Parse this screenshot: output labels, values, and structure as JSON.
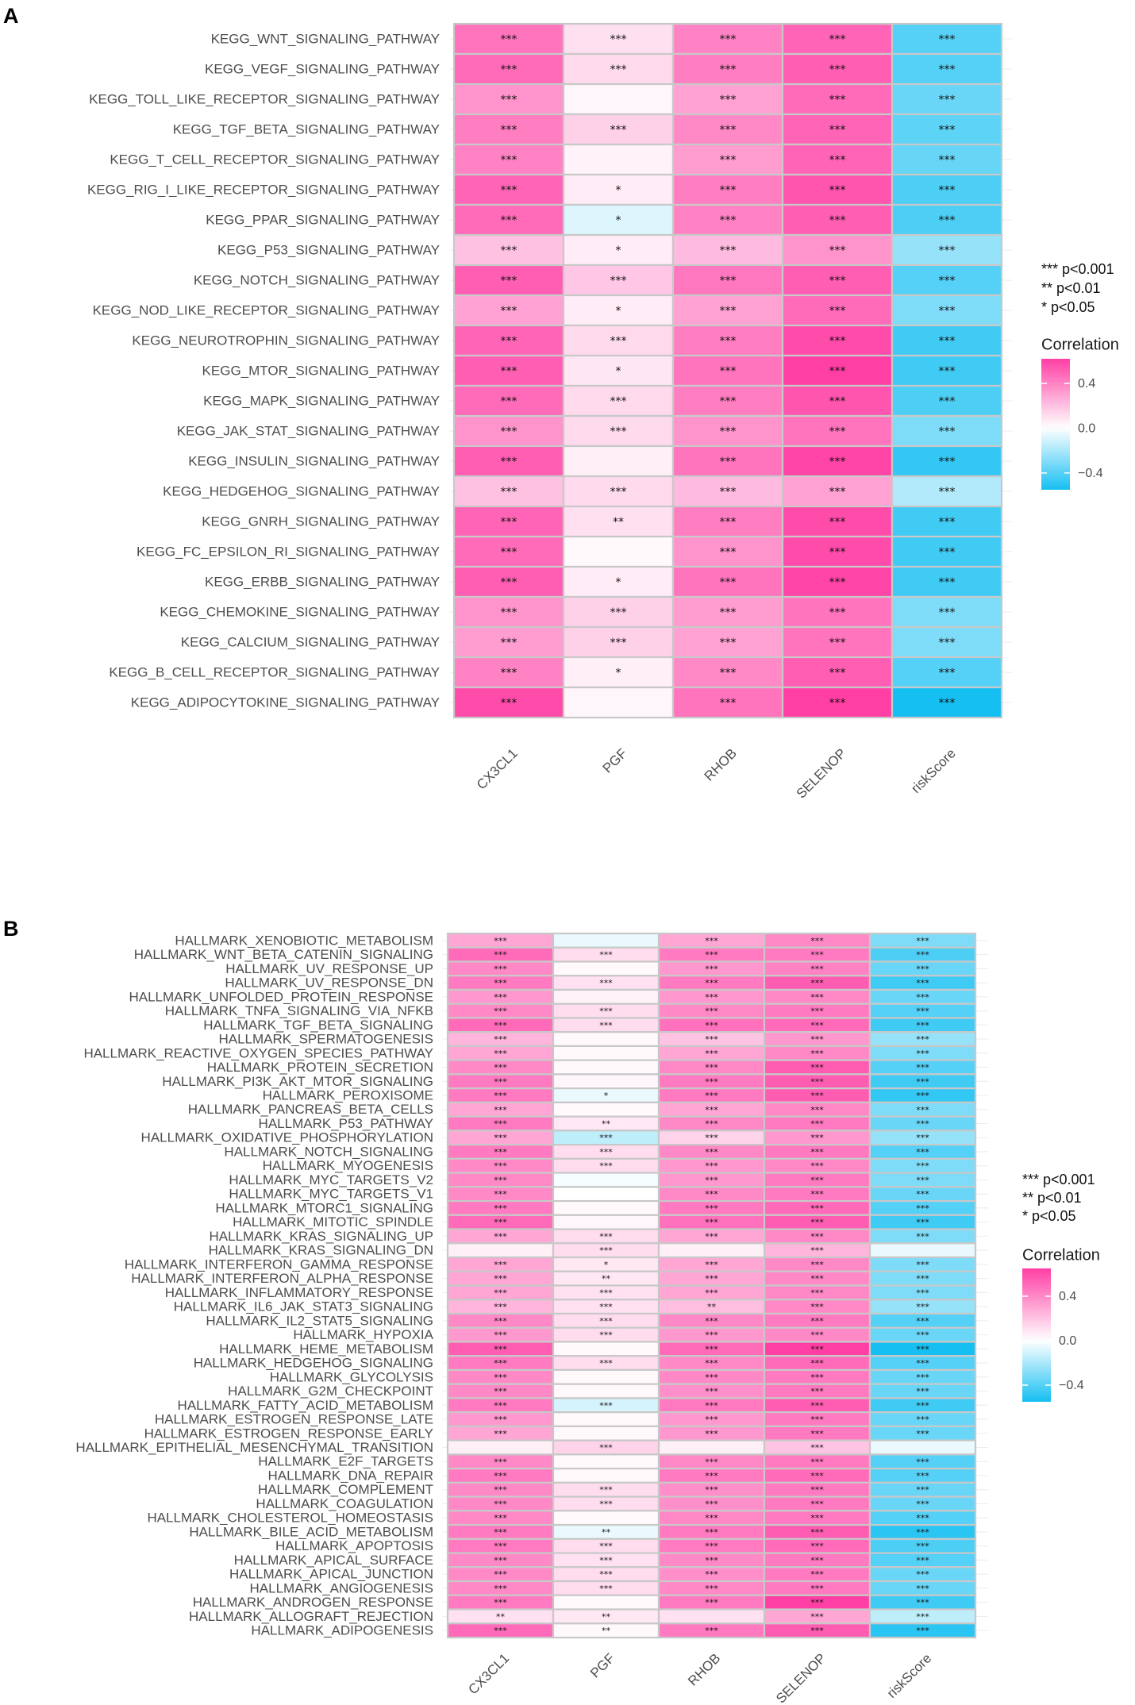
{
  "colors": {
    "high": "#ff3fa4",
    "mid": "#ffffff",
    "low": "#15bff2",
    "border": "#c8c8c8",
    "grid": "#ebebeb"
  },
  "chart_data": [
    {
      "type": "heatmap",
      "panel_label": "A",
      "columns": [
        "CX3CL1",
        "PGF",
        "RHOB",
        "SELENOP",
        "riskScore"
      ],
      "rows": [
        "KEGG_WNT_SIGNALING_PATHWAY",
        "KEGG_VEGF_SIGNALING_PATHWAY",
        "KEGG_TOLL_LIKE_RECEPTOR_SIGNALING_PATHWAY",
        "KEGG_TGF_BETA_SIGNALING_PATHWAY",
        "KEGG_T_CELL_RECEPTOR_SIGNALING_PATHWAY",
        "KEGG_RIG_I_LIKE_RECEPTOR_SIGNALING_PATHWAY",
        "KEGG_PPAR_SIGNALING_PATHWAY",
        "KEGG_P53_SIGNALING_PATHWAY",
        "KEGG_NOTCH_SIGNALING_PATHWAY",
        "KEGG_NOD_LIKE_RECEPTOR_SIGNALING_PATHWAY",
        "KEGG_NEUROTROPHIN_SIGNALING_PATHWAY",
        "KEGG_MTOR_SIGNALING_PATHWAY",
        "KEGG_MAPK_SIGNALING_PATHWAY",
        "KEGG_JAK_STAT_SIGNALING_PATHWAY",
        "KEGG_INSULIN_SIGNALING_PATHWAY",
        "KEGG_HEDGEHOG_SIGNALING_PATHWAY",
        "KEGG_GNRH_SIGNALING_PATHWAY",
        "KEGG_FC_EPSILON_RI_SIGNALING_PATHWAY",
        "KEGG_ERBB_SIGNALING_PATHWAY",
        "KEGG_CHEMOKINE_SIGNALING_PATHWAY",
        "KEGG_CALCIUM_SIGNALING_PATHWAY",
        "KEGG_B_CELL_RECEPTOR_SIGNALING_PATHWAY",
        "KEGG_ADIPOCYTOKINE_SIGNALING_PATHWAY"
      ],
      "values": [
        [
          0.45,
          0.1,
          0.4,
          0.5,
          -0.4
        ],
        [
          0.48,
          0.12,
          0.42,
          0.52,
          -0.4
        ],
        [
          0.35,
          0.03,
          0.3,
          0.48,
          -0.35
        ],
        [
          0.42,
          0.15,
          0.38,
          0.5,
          -0.38
        ],
        [
          0.4,
          0.04,
          0.32,
          0.5,
          -0.36
        ],
        [
          0.5,
          0.06,
          0.42,
          0.55,
          -0.42
        ],
        [
          0.48,
          -0.08,
          0.4,
          0.52,
          -0.42
        ],
        [
          0.2,
          0.06,
          0.22,
          0.35,
          -0.25
        ],
        [
          0.52,
          0.18,
          0.44,
          0.52,
          -0.4
        ],
        [
          0.3,
          0.06,
          0.3,
          0.48,
          -0.3
        ],
        [
          0.5,
          0.12,
          0.42,
          0.58,
          -0.45
        ],
        [
          0.52,
          0.08,
          0.45,
          0.62,
          -0.45
        ],
        [
          0.48,
          0.12,
          0.42,
          0.55,
          -0.42
        ],
        [
          0.35,
          0.12,
          0.35,
          0.45,
          -0.3
        ],
        [
          0.52,
          0.05,
          0.45,
          0.6,
          -0.48
        ],
        [
          0.2,
          0.12,
          0.22,
          0.3,
          -0.18
        ],
        [
          0.5,
          0.1,
          0.42,
          0.58,
          -0.45
        ],
        [
          0.48,
          0.02,
          0.35,
          0.58,
          -0.45
        ],
        [
          0.52,
          0.06,
          0.45,
          0.6,
          -0.45
        ],
        [
          0.35,
          0.15,
          0.32,
          0.45,
          -0.3
        ],
        [
          0.32,
          0.15,
          0.3,
          0.45,
          -0.3
        ],
        [
          0.4,
          0.05,
          0.38,
          0.52,
          -0.4
        ],
        [
          0.58,
          0.03,
          0.45,
          0.62,
          -0.55
        ]
      ],
      "stars": [
        [
          "***",
          "***",
          "***",
          "***",
          "***"
        ],
        [
          "***",
          "***",
          "***",
          "***",
          "***"
        ],
        [
          "***",
          "",
          "***",
          "***",
          "***"
        ],
        [
          "***",
          "***",
          "***",
          "***",
          "***"
        ],
        [
          "***",
          "",
          "***",
          "***",
          "***"
        ],
        [
          "***",
          "*",
          "***",
          "***",
          "***"
        ],
        [
          "***",
          "*",
          "***",
          "***",
          "***"
        ],
        [
          "***",
          "*",
          "***",
          "***",
          "***"
        ],
        [
          "***",
          "***",
          "***",
          "***",
          "***"
        ],
        [
          "***",
          "*",
          "***",
          "***",
          "***"
        ],
        [
          "***",
          "***",
          "***",
          "***",
          "***"
        ],
        [
          "***",
          "*",
          "***",
          "***",
          "***"
        ],
        [
          "***",
          "***",
          "***",
          "***",
          "***"
        ],
        [
          "***",
          "***",
          "***",
          "***",
          "***"
        ],
        [
          "***",
          "",
          "***",
          "***",
          "***"
        ],
        [
          "***",
          "***",
          "***",
          "***",
          "***"
        ],
        [
          "***",
          "**",
          "***",
          "***",
          "***"
        ],
        [
          "***",
          "",
          "***",
          "***",
          "***"
        ],
        [
          "***",
          "*",
          "***",
          "***",
          "***"
        ],
        [
          "***",
          "***",
          "***",
          "***",
          "***"
        ],
        [
          "***",
          "***",
          "***",
          "***",
          "***"
        ],
        [
          "***",
          "*",
          "***",
          "***",
          "***"
        ],
        [
          "***",
          "",
          "***",
          "***",
          "***"
        ]
      ],
      "significance_legend": [
        "***  p<0.001",
        "**  p<0.01",
        "*  p<0.05"
      ],
      "colorbar": {
        "title": "Correlation",
        "ticks": [
          0.4,
          0.0,
          -0.4
        ],
        "tick_labels": [
          "0.4",
          "0.0",
          "−0.4"
        ],
        "range": [
          -0.55,
          0.62
        ]
      }
    },
    {
      "type": "heatmap",
      "panel_label": "B",
      "columns": [
        "CX3CL1",
        "PGF",
        "RHOB",
        "SELENOP",
        "riskScore"
      ],
      "rows": [
        "HALLMARK_XENOBIOTIC_METABOLISM",
        "HALLMARK_WNT_BETA_CATENIN_SIGNALING",
        "HALLMARK_UV_RESPONSE_UP",
        "HALLMARK_UV_RESPONSE_DN",
        "HALLMARK_UNFOLDED_PROTEIN_RESPONSE",
        "HALLMARK_TNFA_SIGNALING_VIA_NFKB",
        "HALLMARK_TGF_BETA_SIGNALING",
        "HALLMARK_SPERMATOGENESIS",
        "HALLMARK_REACTIVE_OXYGEN_SPECIES_PATHWAY",
        "HALLMARK_PROTEIN_SECRETION",
        "HALLMARK_PI3K_AKT_MTOR_SIGNALING",
        "HALLMARK_PEROXISOME",
        "HALLMARK_PANCREAS_BETA_CELLS",
        "HALLMARK_P53_PATHWAY",
        "HALLMARK_OXIDATIVE_PHOSPHORYLATION",
        "HALLMARK_NOTCH_SIGNALING",
        "HALLMARK_MYOGENESIS",
        "HALLMARK_MYC_TARGETS_V2",
        "HALLMARK_MYC_TARGETS_V1",
        "HALLMARK_MTORC1_SIGNALING",
        "HALLMARK_MITOTIC_SPINDLE",
        "HALLMARK_KRAS_SIGNALING_UP",
        "HALLMARK_KRAS_SIGNALING_DN",
        "HALLMARK_INTERFERON_GAMMA_RESPONSE",
        "HALLMARK_INTERFERON_ALPHA_RESPONSE",
        "HALLMARK_INFLAMMATORY_RESPONSE",
        "HALLMARK_IL6_JAK_STAT3_SIGNALING",
        "HALLMARK_IL2_STAT5_SIGNALING",
        "HALLMARK_HYPOXIA",
        "HALLMARK_HEME_METABOLISM",
        "HALLMARK_HEDGEHOG_SIGNALING",
        "HALLMARK_GLYCOLYSIS",
        "HALLMARK_G2M_CHECKPOINT",
        "HALLMARK_FATTY_ACID_METABOLISM",
        "HALLMARK_ESTROGEN_RESPONSE_LATE",
        "HALLMARK_ESTROGEN_RESPONSE_EARLY",
        "HALLMARK_EPITHELIAL_MESENCHYMAL_TRANSITION",
        "HALLMARK_E2F_TARGETS",
        "HALLMARK_DNA_REPAIR",
        "HALLMARK_COMPLEMENT",
        "HALLMARK_COAGULATION",
        "HALLMARK_CHOLESTEROL_HOMEOSTASIS",
        "HALLMARK_BILE_ACID_METABOLISM",
        "HALLMARK_APOPTOSIS",
        "HALLMARK_APICAL_SURFACE",
        "HALLMARK_APICAL_JUNCTION",
        "HALLMARK_ANGIOGENESIS",
        "HALLMARK_ANDROGEN_RESPONSE",
        "HALLMARK_ALLOGRAFT_REJECTION",
        "HALLMARK_ADIPOGENESIS"
      ],
      "values": [
        [
          0.3,
          -0.05,
          0.3,
          0.4,
          -0.3
        ],
        [
          0.5,
          0.12,
          0.45,
          0.45,
          -0.42
        ],
        [
          0.4,
          0.02,
          0.35,
          0.42,
          -0.35
        ],
        [
          0.45,
          0.1,
          0.45,
          0.55,
          -0.45
        ],
        [
          0.35,
          0.04,
          0.35,
          0.4,
          -0.35
        ],
        [
          0.4,
          0.12,
          0.4,
          0.45,
          -0.4
        ],
        [
          0.5,
          0.12,
          0.48,
          0.5,
          -0.45
        ],
        [
          0.25,
          0.02,
          0.2,
          0.35,
          -0.25
        ],
        [
          0.3,
          0.02,
          0.3,
          0.4,
          -0.3
        ],
        [
          0.4,
          0.02,
          0.4,
          0.55,
          -0.4
        ],
        [
          0.45,
          0.03,
          0.45,
          0.55,
          -0.45
        ],
        [
          0.45,
          -0.05,
          0.45,
          0.55,
          -0.48
        ],
        [
          0.3,
          0.02,
          0.3,
          0.4,
          -0.3
        ],
        [
          0.45,
          0.08,
          0.4,
          0.45,
          -0.35
        ],
        [
          0.3,
          -0.15,
          0.15,
          0.35,
          -0.25
        ],
        [
          0.45,
          0.12,
          0.4,
          0.45,
          -0.4
        ],
        [
          0.4,
          0.12,
          0.35,
          0.4,
          -0.3
        ],
        [
          0.4,
          -0.02,
          0.35,
          0.45,
          -0.3
        ],
        [
          0.4,
          0.0,
          0.4,
          0.45,
          -0.35
        ],
        [
          0.45,
          0.02,
          0.45,
          0.5,
          -0.4
        ],
        [
          0.5,
          0.03,
          0.48,
          0.55,
          -0.45
        ],
        [
          0.3,
          0.12,
          0.3,
          0.4,
          -0.3
        ],
        [
          0.05,
          0.12,
          0.05,
          0.25,
          -0.05
        ],
        [
          0.3,
          0.08,
          0.3,
          0.4,
          -0.3
        ],
        [
          0.3,
          0.08,
          0.3,
          0.4,
          -0.3
        ],
        [
          0.3,
          0.1,
          0.3,
          0.4,
          -0.3
        ],
        [
          0.25,
          0.1,
          0.22,
          0.4,
          -0.25
        ],
        [
          0.4,
          0.12,
          0.4,
          0.45,
          -0.4
        ],
        [
          0.35,
          0.12,
          0.35,
          0.4,
          -0.35
        ],
        [
          0.55,
          0.02,
          0.5,
          0.65,
          -0.55
        ],
        [
          0.45,
          0.12,
          0.4,
          0.5,
          -0.4
        ],
        [
          0.4,
          0.02,
          0.4,
          0.45,
          -0.35
        ],
        [
          0.4,
          0.02,
          0.38,
          0.45,
          -0.35
        ],
        [
          0.45,
          -0.1,
          0.45,
          0.55,
          -0.45
        ],
        [
          0.35,
          0.02,
          0.35,
          0.45,
          -0.35
        ],
        [
          0.3,
          0.02,
          0.35,
          0.45,
          -0.35
        ],
        [
          0.05,
          0.15,
          0.05,
          0.2,
          -0.05
        ],
        [
          0.4,
          0.02,
          0.4,
          0.45,
          -0.4
        ],
        [
          0.45,
          0.02,
          0.45,
          0.5,
          -0.4
        ],
        [
          0.4,
          0.12,
          0.38,
          0.45,
          -0.35
        ],
        [
          0.4,
          0.12,
          0.38,
          0.45,
          -0.35
        ],
        [
          0.4,
          0.02,
          0.4,
          0.45,
          -0.4
        ],
        [
          0.45,
          -0.05,
          0.45,
          0.55,
          -0.5
        ],
        [
          0.45,
          0.12,
          0.45,
          0.5,
          -0.42
        ],
        [
          0.4,
          0.1,
          0.4,
          0.45,
          -0.4
        ],
        [
          0.4,
          0.12,
          0.38,
          0.45,
          -0.35
        ],
        [
          0.4,
          0.12,
          0.4,
          0.45,
          -0.35
        ],
        [
          0.45,
          0.02,
          0.45,
          0.65,
          -0.45
        ],
        [
          0.1,
          0.08,
          0.1,
          0.3,
          -0.15
        ],
        [
          0.5,
          0.02,
          0.45,
          0.55,
          -0.5
        ]
      ],
      "stars": [
        [
          "***",
          "",
          "***",
          "***",
          "***"
        ],
        [
          "***",
          "***",
          "***",
          "***",
          "***"
        ],
        [
          "***",
          "",
          "***",
          "***",
          "***"
        ],
        [
          "***",
          "***",
          "***",
          "***",
          "***"
        ],
        [
          "***",
          "",
          "***",
          "***",
          "***"
        ],
        [
          "***",
          "***",
          "***",
          "***",
          "***"
        ],
        [
          "***",
          "***",
          "***",
          "***",
          "***"
        ],
        [
          "***",
          "",
          "***",
          "***",
          "***"
        ],
        [
          "***",
          "",
          "***",
          "***",
          "***"
        ],
        [
          "***",
          "",
          "***",
          "***",
          "***"
        ],
        [
          "***",
          "",
          "***",
          "***",
          "***"
        ],
        [
          "***",
          "*",
          "***",
          "***",
          "***"
        ],
        [
          "***",
          "",
          "***",
          "***",
          "***"
        ],
        [
          "***",
          "**",
          "***",
          "***",
          "***"
        ],
        [
          "***",
          "***",
          "***",
          "***",
          "***"
        ],
        [
          "***",
          "***",
          "***",
          "***",
          "***"
        ],
        [
          "***",
          "***",
          "***",
          "***",
          "***"
        ],
        [
          "***",
          "",
          "***",
          "***",
          "***"
        ],
        [
          "***",
          "",
          "***",
          "***",
          "***"
        ],
        [
          "***",
          "",
          "***",
          "***",
          "***"
        ],
        [
          "***",
          "",
          "***",
          "***",
          "***"
        ],
        [
          "***",
          "***",
          "***",
          "***",
          "***"
        ],
        [
          "",
          "***",
          "",
          "***",
          ""
        ],
        [
          "***",
          "*",
          "***",
          "***",
          "***"
        ],
        [
          "***",
          "**",
          "***",
          "***",
          "***"
        ],
        [
          "***",
          "***",
          "***",
          "***",
          "***"
        ],
        [
          "***",
          "***",
          "**",
          "***",
          "***"
        ],
        [
          "***",
          "***",
          "***",
          "***",
          "***"
        ],
        [
          "***",
          "***",
          "***",
          "***",
          "***"
        ],
        [
          "***",
          "",
          "***",
          "***",
          "***"
        ],
        [
          "***",
          "***",
          "***",
          "***",
          "***"
        ],
        [
          "***",
          "",
          "***",
          "***",
          "***"
        ],
        [
          "***",
          "",
          "***",
          "***",
          "***"
        ],
        [
          "***",
          "***",
          "***",
          "***",
          "***"
        ],
        [
          "***",
          "",
          "***",
          "***",
          "***"
        ],
        [
          "***",
          "",
          "***",
          "***",
          "***"
        ],
        [
          "",
          "***",
          "",
          "***",
          ""
        ],
        [
          "***",
          "",
          "***",
          "***",
          "***"
        ],
        [
          "***",
          "",
          "***",
          "***",
          "***"
        ],
        [
          "***",
          "***",
          "***",
          "***",
          "***"
        ],
        [
          "***",
          "***",
          "***",
          "***",
          "***"
        ],
        [
          "***",
          "",
          "***",
          "***",
          "***"
        ],
        [
          "***",
          "**",
          "***",
          "***",
          "***"
        ],
        [
          "***",
          "***",
          "***",
          "***",
          "***"
        ],
        [
          "***",
          "***",
          "***",
          "***",
          "***"
        ],
        [
          "***",
          "***",
          "***",
          "***",
          "***"
        ],
        [
          "***",
          "***",
          "***",
          "***",
          "***"
        ],
        [
          "***",
          "",
          "***",
          "***",
          "***"
        ],
        [
          "**",
          "**",
          "",
          "***",
          "***"
        ],
        [
          "***",
          "**",
          "***",
          "***",
          "***"
        ]
      ],
      "significance_legend": [
        "***  p<0.001",
        "**  p<0.01",
        "*  p<0.05"
      ],
      "colorbar": {
        "title": "Correlation",
        "ticks": [
          0.4,
          0.0,
          -0.4
        ],
        "tick_labels": [
          "0.4",
          "0.0",
          "−0.4"
        ],
        "range": [
          -0.55,
          0.65
        ]
      }
    }
  ]
}
